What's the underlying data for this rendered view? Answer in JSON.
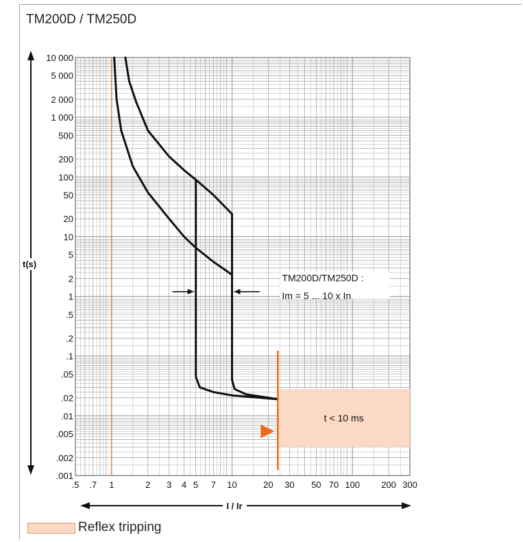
{
  "title": "TM200D / TM250D",
  "legend": {
    "label": "Reflex tripping",
    "color": "#fbd9c4"
  },
  "colors": {
    "curve": "#111111",
    "accent": "#ee6a1a",
    "fill": "#fbd9c4",
    "grid": "#9b9b9b"
  },
  "chart_data": {
    "type": "line",
    "title": "",
    "xlabel": "I / Ir",
    "ylabel": "t(s)",
    "x_scale": "log",
    "y_scale": "log",
    "xlim": [
      0.5,
      300
    ],
    "ylim": [
      0.001,
      10000
    ],
    "grid": true,
    "x_ticks": [
      {
        "v": 0.5,
        "label": ".5"
      },
      {
        "v": 0.7,
        "label": ".7"
      },
      {
        "v": 1,
        "label": "1"
      },
      {
        "v": 2,
        "label": "2"
      },
      {
        "v": 3,
        "label": "3"
      },
      {
        "v": 4,
        "label": "4"
      },
      {
        "v": 5,
        "label": "5"
      },
      {
        "v": 7,
        "label": "7"
      },
      {
        "v": 10,
        "label": "10"
      },
      {
        "v": 20,
        "label": "20"
      },
      {
        "v": 30,
        "label": "30"
      },
      {
        "v": 50,
        "label": "50"
      },
      {
        "v": 70,
        "label": "70"
      },
      {
        "v": 100,
        "label": "100"
      },
      {
        "v": 200,
        "label": "200"
      },
      {
        "v": 300,
        "label": "300"
      }
    ],
    "y_ticks": [
      {
        "v": 10000,
        "label": "10 000"
      },
      {
        "v": 5000,
        "label": "5 000"
      },
      {
        "v": 2000,
        "label": "2 000"
      },
      {
        "v": 1000,
        "label": "1 000"
      },
      {
        "v": 500,
        "label": "500"
      },
      {
        "v": 200,
        "label": "200"
      },
      {
        "v": 100,
        "label": "100"
      },
      {
        "v": 50,
        "label": "50"
      },
      {
        "v": 20,
        "label": "20"
      },
      {
        "v": 10,
        "label": "10"
      },
      {
        "v": 5,
        "label": "5"
      },
      {
        "v": 2,
        "label": "2"
      },
      {
        "v": 1,
        "label": "1"
      },
      {
        "v": 0.5,
        "label": ".5"
      },
      {
        "v": 0.2,
        "label": ".2"
      },
      {
        "v": 0.1,
        "label": ".1"
      },
      {
        "v": 0.05,
        "label": ".05"
      },
      {
        "v": 0.02,
        "label": ".02"
      },
      {
        "v": 0.01,
        "label": ".01"
      },
      {
        "v": 0.005,
        "label": ".005"
      },
      {
        "v": 0.002,
        "label": ".002"
      },
      {
        "v": 0.001,
        "label": ".001"
      }
    ],
    "reference_line_x": 1,
    "series": [
      {
        "points": [
          [
            1.05,
            10000
          ],
          [
            1.1,
            2000
          ],
          [
            1.2,
            600
          ],
          [
            1.5,
            150
          ],
          [
            2,
            55
          ],
          [
            3,
            20
          ],
          [
            4,
            10
          ],
          [
            5,
            6.5
          ],
          [
            7,
            3.8
          ],
          [
            10,
            2.3
          ]
        ]
      },
      {
        "points": [
          [
            1.3,
            10000
          ],
          [
            1.4,
            4000
          ],
          [
            1.6,
            1800
          ],
          [
            2,
            600
          ],
          [
            3,
            220
          ],
          [
            4,
            130
          ],
          [
            5,
            90
          ],
          [
            7,
            50
          ],
          [
            10,
            24
          ]
        ]
      },
      {
        "points": [
          [
            5,
            90
          ],
          [
            5,
            0.045
          ],
          [
            5.4,
            0.03
          ],
          [
            7,
            0.025
          ],
          [
            10,
            0.022
          ],
          [
            24,
            0.019
          ]
        ]
      },
      {
        "points": [
          [
            10,
            24
          ],
          [
            10,
            0.04
          ],
          [
            10.5,
            0.028
          ],
          [
            13,
            0.023
          ],
          [
            24,
            0.019
          ]
        ]
      }
    ],
    "annotations": [
      {
        "text": "TM200D/TM250D :",
        "x": 26,
        "y": 1.8
      },
      {
        "text": "Im = 5 ... 10 x In",
        "x": 26,
        "y": 0.9
      }
    ],
    "reflex_region": {
      "x_start": 24,
      "x_end": 300,
      "y_min": 0.003,
      "y_max": 0.028,
      "label": "t < 10 ms"
    },
    "reflex_line": {
      "x": 24,
      "y_min": 0.0012,
      "y_max": 0.1
    },
    "reflex_marker": {
      "x": 24,
      "y": 0.0055
    },
    "range_arrows": [
      {
        "from_x": 3.2,
        "to_x": 5,
        "y": 1.2
      },
      {
        "from_x": 17,
        "to_x": 10,
        "y": 1.2
      }
    ]
  }
}
